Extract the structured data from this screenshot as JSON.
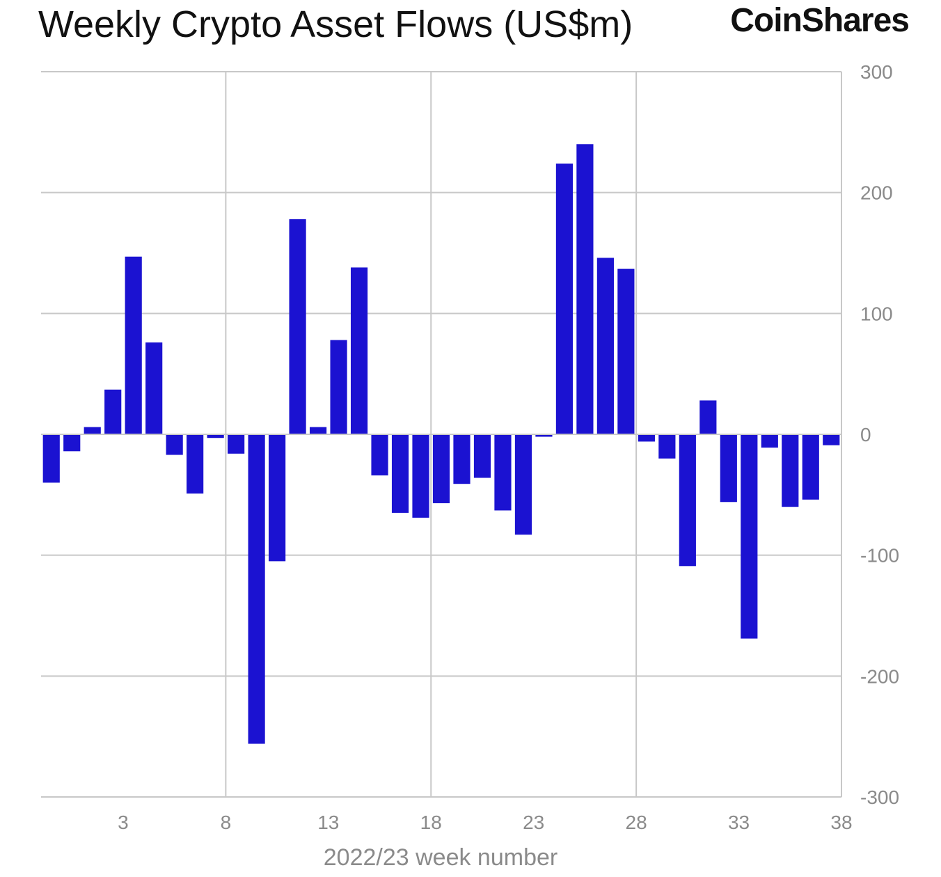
{
  "header": {
    "title": "Weekly Crypto Asset Flows (US$m)",
    "brand": "CoinShares"
  },
  "chart_data": {
    "type": "bar",
    "title": "Weekly Crypto Asset Flows (US$m)",
    "xlabel": "2022/23 week number",
    "ylabel": "",
    "x": [
      1,
      2,
      3,
      4,
      5,
      6,
      7,
      8,
      9,
      10,
      11,
      12,
      13,
      14,
      15,
      16,
      17,
      18,
      19,
      20,
      21,
      22,
      23,
      24,
      25,
      26,
      27,
      28,
      29,
      30,
      31,
      32,
      33,
      34,
      35,
      36,
      37,
      38,
      39
    ],
    "values": [
      -40,
      -14,
      6,
      37,
      147,
      76,
      -17,
      -49,
      -3,
      -16,
      -256,
      -105,
      178,
      6,
      78,
      138,
      -34,
      -65,
      -69,
      -57,
      -41,
      -36,
      -63,
      -83,
      -2,
      224,
      240,
      146,
      137,
      -6,
      -20,
      -109,
      28,
      -56,
      -169,
      -11,
      -60,
      -54,
      -9
    ],
    "x_ticks": [
      "3",
      "8",
      "13",
      "18",
      "23",
      "28",
      "33",
      "38"
    ],
    "x_tick_values": [
      4.5,
      9.5,
      14.5,
      19.5,
      24.5,
      29.5,
      34.5,
      39.5
    ],
    "y_ticks": [
      "300",
      "200",
      "100",
      "0",
      "-100",
      "-200",
      "-300"
    ],
    "y_tick_values": [
      300,
      200,
      100,
      0,
      -100,
      -200,
      -300
    ],
    "ylim": [
      -300,
      300
    ],
    "y_axis_side": "right",
    "grid": true,
    "bar_color": "#1b12d1",
    "grid_color": "#c8c8c8"
  }
}
